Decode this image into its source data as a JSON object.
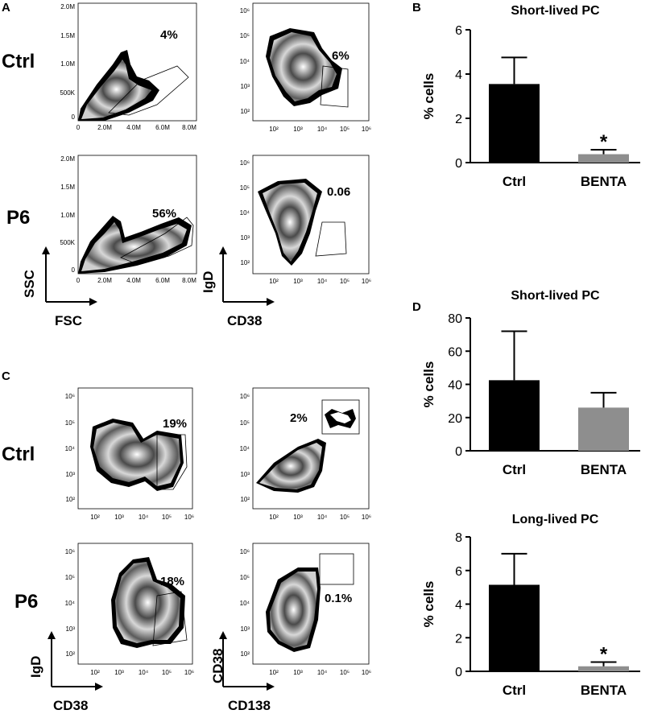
{
  "panel_labels": {
    "a": "A",
    "b": "B",
    "c": "C",
    "d": "D"
  },
  "flow_rows": {
    "ctrl": "Ctrl",
    "p6": "P6"
  },
  "flow_axes": {
    "ssc": "SSC",
    "fsc": "FSC",
    "igd": "IgD",
    "cd38": "CD38",
    "cd138": "CD138"
  },
  "tick_labels": {
    "scale_m_y": [
      "2.0M",
      "1.5M",
      "1.0M",
      "500K",
      "0"
    ],
    "scale_m_x": [
      "0",
      "2.0M",
      "4.0M",
      "6.0M",
      "8.0M"
    ],
    "log_y": [
      "10⁶",
      "10⁵",
      "10⁴",
      "10³",
      "10²"
    ],
    "log_x": [
      "10²",
      "10³",
      "10⁴",
      "10⁵",
      "10⁶"
    ]
  },
  "gate_percentages": {
    "a_ctrl_scatter": "4%",
    "a_ctrl_igd": "6%",
    "a_p6_scatter": "56%",
    "a_p6_igd": "0.06",
    "c_ctrl_igd": "19%",
    "c_ctrl_cd138": "2%",
    "c_p6_igd": "18%",
    "c_p6_cd138": "0.1%"
  },
  "chart_data": [
    {
      "type": "bar",
      "panel": "B",
      "title": "Short-lived PC",
      "ylabel": "% cells",
      "categories": [
        "Ctrl",
        "BENTA"
      ],
      "values": [
        3.55,
        0.38
      ],
      "error_upper": [
        1.2,
        0.2
      ],
      "ylim": [
        0,
        6
      ],
      "yticks": [
        "0",
        "2",
        "4",
        "6"
      ],
      "significance": "*",
      "colors": [
        "#000000",
        "#8e8e8e"
      ]
    },
    {
      "type": "bar",
      "panel": "D",
      "title": "Short-lived PC",
      "ylabel": "% cells",
      "categories": [
        "Ctrl",
        "BENTA"
      ],
      "values": [
        42.5,
        26
      ],
      "error_upper": [
        29.5,
        9
      ],
      "ylim": [
        0,
        80
      ],
      "yticks": [
        "0",
        "20",
        "40",
        "60",
        "80"
      ],
      "significance": "",
      "colors": [
        "#000000",
        "#8e8e8e"
      ]
    },
    {
      "type": "bar",
      "panel": "D",
      "title": "Long-lived PC",
      "ylabel": "% cells",
      "categories": [
        "Ctrl",
        "BENTA"
      ],
      "values": [
        5.15,
        0.3
      ],
      "error_upper": [
        1.85,
        0.25
      ],
      "ylim": [
        0,
        8
      ],
      "yticks": [
        "0",
        "2",
        "4",
        "6",
        "8"
      ],
      "significance": "*",
      "colors": [
        "#000000",
        "#8e8e8e"
      ]
    }
  ]
}
